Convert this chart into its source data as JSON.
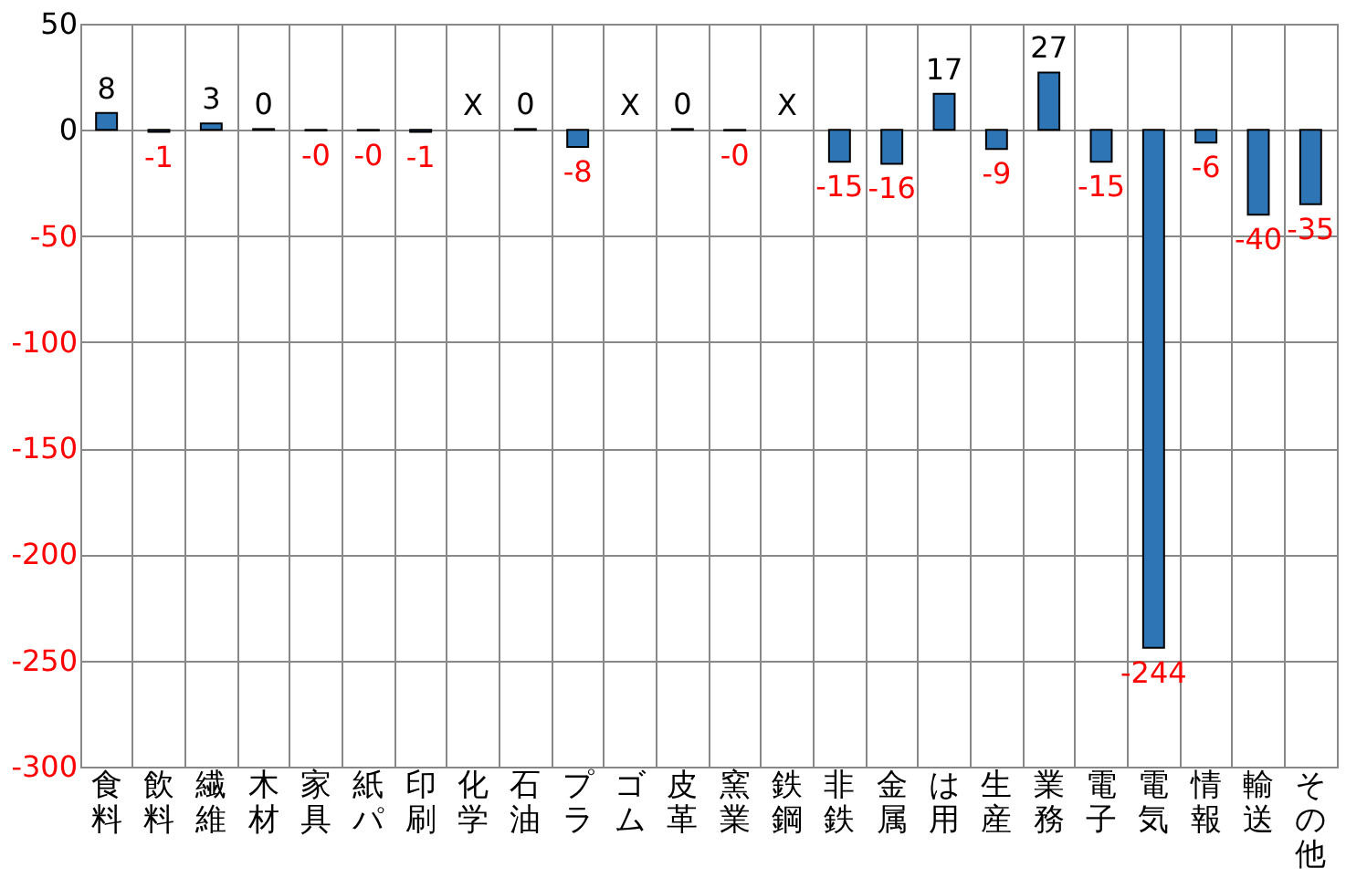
{
  "chart_data": {
    "type": "bar",
    "categories": [
      "食料",
      "飲料",
      "繊維",
      "木材",
      "家具",
      "紙パ",
      "印刷",
      "化学",
      "石油",
      "プラ",
      "ゴム",
      "皮革",
      "窯業",
      "鉄鋼",
      "非鉄",
      "金属",
      "は用",
      "生産",
      "業務",
      "電子",
      "電気",
      "情報",
      "輸送",
      "その他"
    ],
    "values": [
      8,
      -1,
      3,
      0.4,
      -0.3,
      -0.3,
      -1,
      null,
      0.4,
      -8,
      null,
      0.4,
      -0.3,
      null,
      -15,
      -16,
      17,
      -9,
      27,
      -15,
      -244,
      -6,
      -40,
      -35
    ],
    "value_labels": [
      "8",
      "-1",
      "3",
      "0",
      "-0",
      "-0",
      "-1",
      "X",
      "0",
      "-8",
      "X",
      "0",
      "-0",
      "X",
      "-15",
      "-16",
      "17",
      "-9",
      "27",
      "-15",
      "-244",
      "-6",
      "-40",
      "-35"
    ],
    "color": "#2e75b6",
    "ylim": [
      -300,
      50
    ],
    "yticks": [
      -300,
      -250,
      -200,
      -150,
      -100,
      -50,
      0,
      50
    ],
    "grid": true
  }
}
